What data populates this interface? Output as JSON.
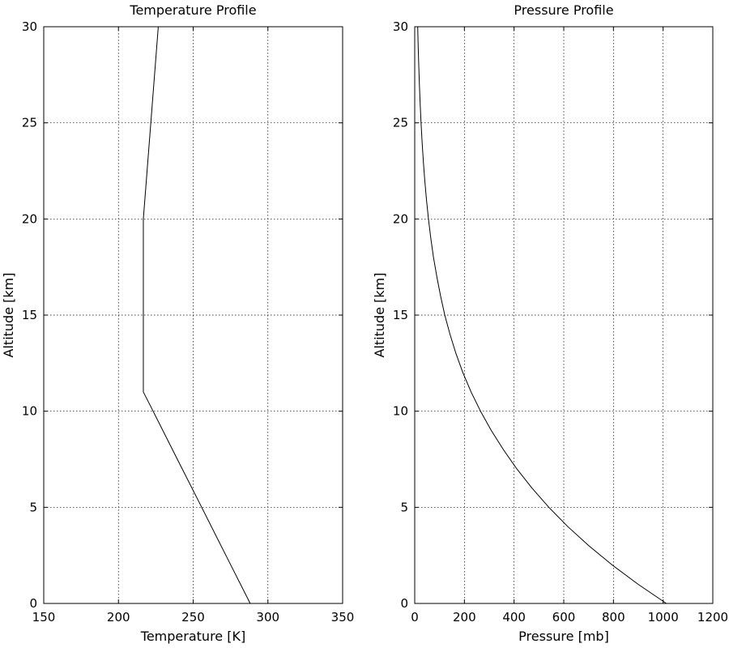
{
  "chart_data": [
    {
      "type": "line",
      "title": "Temperature Profile",
      "xlabel": "Temperature [K]",
      "ylabel": "Altitude [km]",
      "xlim": [
        150,
        350
      ],
      "ylim": [
        0,
        30
      ],
      "xticks": [
        150,
        200,
        250,
        300,
        350
      ],
      "yticks": [
        0,
        5,
        10,
        15,
        20,
        25,
        30
      ],
      "grid": true,
      "series": [
        {
          "x": [
            288.15,
            271.9,
            255.7,
            239.4,
            223.2,
            216.65,
            216.65,
            216.65,
            221.65,
            226.65
          ],
          "y": [
            0,
            2.5,
            5,
            7.5,
            10,
            11,
            15,
            20,
            25,
            30
          ]
        }
      ]
    },
    {
      "type": "line",
      "title": "Pressure Profile",
      "xlabel": "Pressure [mb]",
      "ylabel": "Altitude [km]",
      "xlim": [
        0,
        1200
      ],
      "ylim": [
        0,
        30
      ],
      "xticks": [
        0,
        200,
        400,
        600,
        800,
        1000,
        1200
      ],
      "yticks": [
        0,
        5,
        10,
        15,
        20,
        25,
        30
      ],
      "grid": true,
      "series": [
        {
          "x": [
            1013,
            899,
            795,
            701,
            616,
            540,
            472,
            411,
            357,
            308,
            265,
            227,
            194,
            166,
            142,
            121,
            104,
            89,
            75.6,
            64.7,
            55.3,
            47.3,
            40.5,
            34.7,
            29.7,
            25.5,
            21.9,
            18.8,
            16.2,
            13.9,
            12.0
          ],
          "y": [
            0,
            1,
            2,
            3,
            4,
            5,
            6,
            7,
            8,
            9,
            10,
            11,
            12,
            13,
            14,
            15,
            16,
            17,
            18,
            19,
            20,
            21,
            22,
            23,
            24,
            25,
            26,
            27,
            28,
            29,
            30
          ]
        }
      ]
    }
  ]
}
